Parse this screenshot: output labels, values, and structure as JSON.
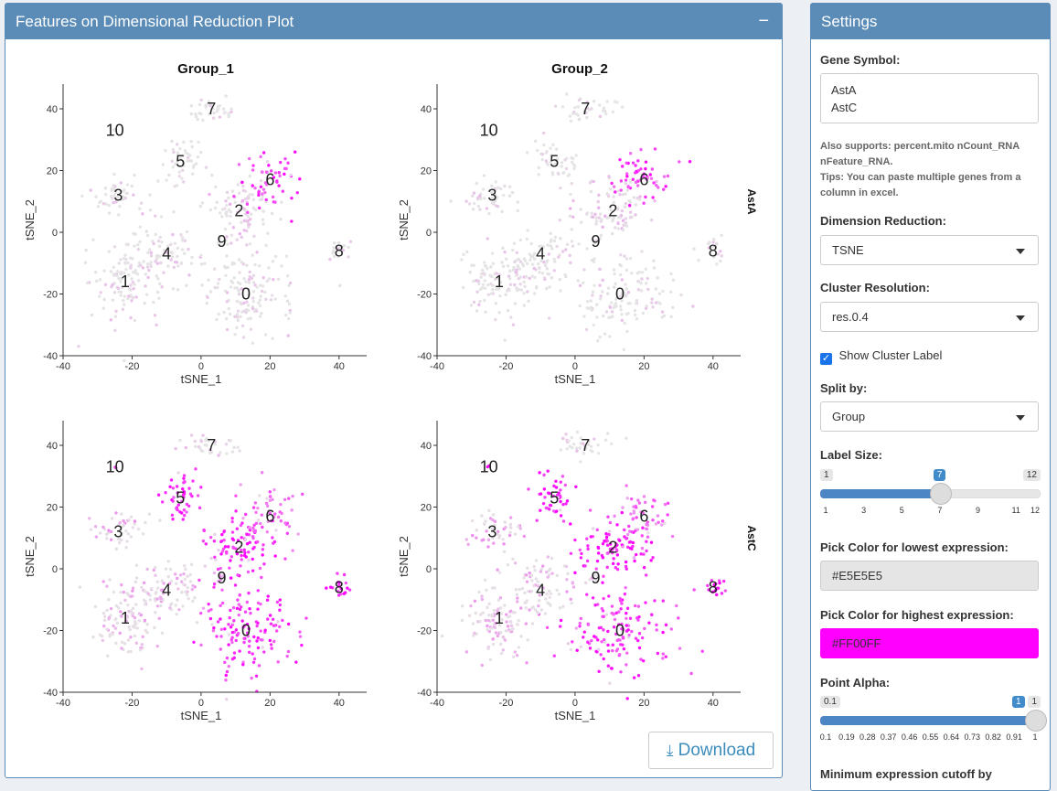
{
  "plot_panel": {
    "title": "Features on Dimensional Reduction Plot",
    "collapse_label": "−",
    "download_label": "Download"
  },
  "settings": {
    "title": "Settings",
    "gene_symbol_label": "Gene Symbol:",
    "gene_symbol_value": "AstA\nAstC",
    "help_1": "Also supports: percent.mito nCount_RNA nFeature_RNA.",
    "help_2": "Tips: You can paste multiple genes from a column in excel.",
    "dim_reduction_label": "Dimension Reduction:",
    "dim_reduction_value": "TSNE",
    "cluster_res_label": "Cluster Resolution:",
    "cluster_res_value": "res.0.4",
    "show_label_text": "Show Cluster Label",
    "show_label_checked": true,
    "split_by_label": "Split by:",
    "split_by_value": "Group",
    "label_size_label": "Label Size:",
    "label_size": {
      "min": "1",
      "max": "12",
      "value": "7",
      "ticks": [
        "1",
        "3",
        "5",
        "7",
        "9",
        "11",
        "12"
      ]
    },
    "low_color_label": "Pick Color for lowest expression:",
    "low_color": "#E5E5E5",
    "high_color_label": "Pick Color for highest expression:",
    "high_color": "#FF00FF",
    "alpha_label": "Point Alpha:",
    "alpha": {
      "min": "0.1",
      "max": "1",
      "value": "1",
      "ticks": [
        "0.1",
        "0.19",
        "0.28",
        "0.37",
        "0.46",
        "0.55",
        "0.64",
        "0.73",
        "0.82",
        "0.91",
        "1"
      ]
    },
    "cutoff_label": "Minimum expression cutoff by"
  },
  "chart_data": {
    "type": "scatter",
    "xlabel": "tSNE_1",
    "ylabel": "tSNE_2",
    "xlim": [
      -40,
      48
    ],
    "ylim": [
      -40,
      48
    ],
    "xticks": [
      "-40",
      "-20",
      "0",
      "20",
      "40"
    ],
    "yticks": [
      "-40",
      "-20",
      "0",
      "20",
      "40"
    ],
    "columns": [
      "Group_1",
      "Group_2"
    ],
    "rows": [
      "AstA",
      "AstC"
    ],
    "low_color": "#E5E5E5",
    "high_color": "#FF00FF",
    "clusters": [
      {
        "label": "0",
        "x": 13,
        "y": -20
      },
      {
        "label": "1",
        "x": -22,
        "y": -16
      },
      {
        "label": "2",
        "x": 11,
        "y": 7
      },
      {
        "label": "3",
        "x": -24,
        "y": 12
      },
      {
        "label": "4",
        "x": -10,
        "y": -7
      },
      {
        "label": "5",
        "x": -6,
        "y": 23
      },
      {
        "label": "6",
        "x": 20,
        "y": 17
      },
      {
        "label": "7",
        "x": 3,
        "y": 40
      },
      {
        "label": "8",
        "x": 40,
        "y": -6
      },
      {
        "label": "9",
        "x": 6,
        "y": -3
      },
      {
        "label": "10",
        "x": -25,
        "y": 33
      }
    ],
    "expression": {
      "AstA": [
        0.08,
        0.1,
        0.15,
        0.08,
        0.08,
        0.03,
        0.75,
        0.05,
        0.1,
        0.05,
        0.05
      ],
      "AstC": [
        0.75,
        0.25,
        0.85,
        0.3,
        0.25,
        0.85,
        0.5,
        0.1,
        0.85,
        0.3,
        0.8
      ]
    }
  }
}
